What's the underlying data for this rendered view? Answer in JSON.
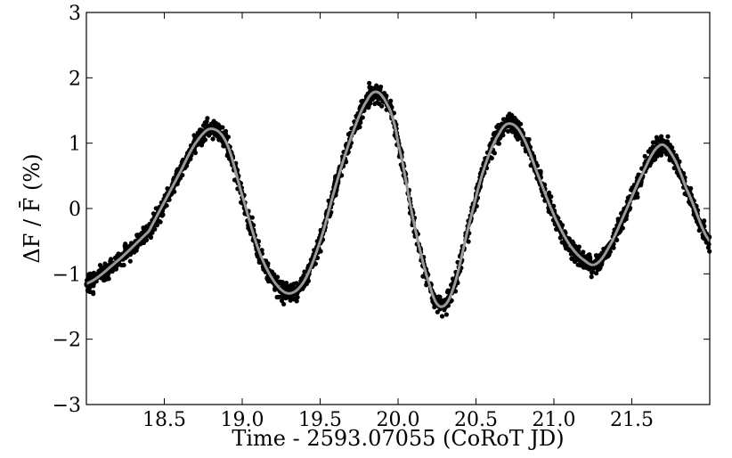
{
  "chart_data": {
    "type": "scatter",
    "title": "",
    "xlabel": "Time - 2593.07055 (CoRoT JD)",
    "ylabel": "ΔF / F̄ (%)",
    "xlim": [
      18.0,
      22.0
    ],
    "ylim": [
      -3,
      3
    ],
    "x_ticks": [
      18.5,
      19.0,
      19.5,
      20.0,
      20.5,
      21.0,
      21.5
    ],
    "x_tick_labels": [
      "18.5",
      "19.0",
      "19.5",
      "20.0",
      "20.5",
      "21.0",
      "21.5"
    ],
    "y_ticks": [
      -3,
      -2,
      -1,
      0,
      1,
      2,
      3
    ],
    "y_tick_labels": [
      "−3",
      "−2",
      "−1",
      "0",
      "1",
      "2",
      "3"
    ],
    "grid": false,
    "colors": {
      "points": "#000000",
      "fit": "#999999"
    },
    "series": [
      {
        "kind": "fit-line",
        "x": [
          18.0,
          18.2,
          18.4,
          18.5,
          18.6,
          18.7,
          18.8,
          18.9,
          19.0,
          19.1,
          19.2,
          19.3,
          19.4,
          19.5,
          19.6,
          19.7,
          19.8,
          19.87,
          19.95,
          20.0,
          20.1,
          20.2,
          20.27,
          20.35,
          20.45,
          20.55,
          20.65,
          20.72,
          20.8,
          20.9,
          21.0,
          21.1,
          21.2,
          21.27,
          21.35,
          21.45,
          21.55,
          21.67,
          21.75,
          21.85,
          22.0
        ],
        "y": [
          -1.15,
          -0.8,
          -0.35,
          0.1,
          0.55,
          1.0,
          1.22,
          1.0,
          0.2,
          -0.6,
          -1.1,
          -1.3,
          -1.1,
          -0.5,
          0.35,
          1.1,
          1.65,
          1.78,
          1.5,
          1.0,
          -0.2,
          -1.15,
          -1.5,
          -1.25,
          -0.3,
          0.6,
          1.15,
          1.3,
          1.1,
          0.5,
          -0.1,
          -0.55,
          -0.8,
          -0.85,
          -0.6,
          -0.1,
          0.45,
          0.95,
          0.85,
          0.3,
          -0.5
        ]
      }
    ]
  }
}
